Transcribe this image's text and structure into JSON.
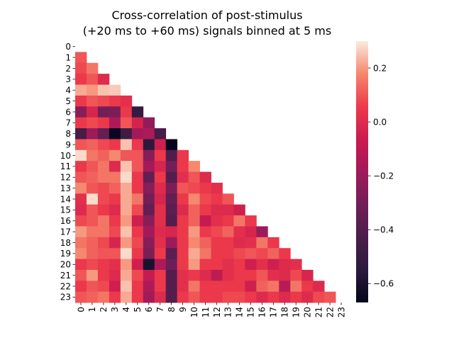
{
  "chart_data": {
    "type": "heatmap",
    "title_lines": [
      "Cross-correlation of post-stimulus",
      "(+20 ms to +60 ms) signals binned at 5 ms"
    ],
    "xlabel": "",
    "ylabel": "",
    "x_tick_labels": [
      "0",
      "1",
      "2",
      "3",
      "4",
      "5",
      "6",
      "7",
      "8",
      "9",
      "10",
      "11",
      "12",
      "13",
      "14",
      "15",
      "16",
      "17",
      "18",
      "19",
      "20",
      "21",
      "22",
      "23"
    ],
    "y_tick_labels": [
      "0",
      "1",
      "2",
      "3",
      "4",
      "5",
      "6",
      "7",
      "8",
      "9",
      "10",
      "11",
      "12",
      "13",
      "14",
      "15",
      "16",
      "17",
      "18",
      "19",
      "20",
      "21",
      "22",
      "23"
    ],
    "mask": "upper triangle including diagonal (only cells with column < row are shown)",
    "colormap": "rocket",
    "vmin": -0.67,
    "vmax": 0.3,
    "colorbar_ticks": [
      0.2,
      0.0,
      -0.2,
      -0.4,
      -0.6
    ],
    "colorbar_tick_labels": [
      "0.2",
      "0.0",
      "−0.2",
      "−0.4",
      "−0.6"
    ],
    "values": [
      [],
      [
        0.1
      ],
      [
        0.08,
        0.15
      ],
      [
        0.05,
        0.1,
        0.0
      ],
      [
        0.22,
        0.2,
        0.25,
        0.26
      ],
      [
        0.05,
        0.1,
        0.08,
        0.05,
        0.02
      ],
      [
        -0.25,
        -0.02,
        -0.3,
        -0.28,
        0.05,
        -0.52
      ],
      [
        0.05,
        0.08,
        0.05,
        -0.15,
        0.1,
        -0.03,
        -0.22
      ],
      [
        -0.45,
        -0.2,
        -0.35,
        -0.65,
        -0.48,
        -0.18,
        -0.15,
        -0.45
      ],
      [
        0.1,
        0.12,
        0.08,
        0.05,
        0.25,
        0.05,
        -0.55,
        -0.05,
        -0.66
      ],
      [
        0.28,
        0.15,
        0.12,
        0.18,
        0.1,
        0.1,
        -0.25,
        0.05,
        -0.42,
        0.05
      ],
      [
        0.05,
        0.1,
        0.15,
        0.0,
        0.25,
        0.1,
        -0.18,
        -0.02,
        -0.3,
        0.05,
        0.18
      ],
      [
        0.1,
        0.12,
        0.15,
        0.15,
        0.28,
        0.05,
        -0.35,
        0.05,
        -0.4,
        0.02,
        0.1,
        0.0
      ],
      [
        0.18,
        0.1,
        0.08,
        0.12,
        0.22,
        0.05,
        -0.25,
        0.0,
        -0.28,
        0.1,
        0.08,
        0.05,
        0.02
      ],
      [
        0.02,
        0.28,
        0.08,
        0.05,
        0.22,
        0.15,
        -0.3,
        -0.02,
        -0.35,
        0.05,
        0.18,
        0.08,
        0.05,
        0.1
      ],
      [
        0.0,
        0.1,
        0.05,
        0.0,
        0.22,
        0.08,
        -0.35,
        0.02,
        -0.38,
        0.0,
        0.12,
        0.05,
        0.0,
        0.0,
        -0.05
      ],
      [
        0.08,
        0.1,
        0.15,
        0.05,
        0.2,
        -0.05,
        -0.25,
        0.02,
        -0.4,
        0.05,
        0.12,
        -0.08,
        0.02,
        0.05,
        0.15,
        0.05
      ],
      [
        0.2,
        0.15,
        0.15,
        0.08,
        0.25,
        0.05,
        -0.18,
        0.0,
        -0.02,
        0.05,
        0.2,
        0.05,
        0.08,
        0.12,
        0.02,
        -0.02,
        -0.2
      ],
      [
        0.15,
        0.12,
        0.08,
        -0.02,
        0.2,
        0.08,
        -0.25,
        0.02,
        -0.2,
        0.05,
        0.18,
        0.12,
        0.05,
        0.05,
        0.0,
        0.02,
        0.15,
        0.05
      ],
      [
        0.18,
        0.12,
        0.1,
        0.1,
        0.28,
        0.05,
        -0.28,
        0.05,
        -0.38,
        0.05,
        0.22,
        0.15,
        0.05,
        0.05,
        0.08,
        0.1,
        0.08,
        0.12,
        0.05
      ],
      [
        0.05,
        0.08,
        0.05,
        0.02,
        0.2,
        -0.05,
        -0.6,
        -0.15,
        -0.32,
        0.05,
        0.2,
        0.05,
        0.05,
        0.02,
        0.05,
        -0.05,
        0.02,
        -0.05,
        0.0,
        0.02
      ],
      [
        0.1,
        0.2,
        0.05,
        0.0,
        0.22,
        0.08,
        -0.08,
        0.05,
        -0.4,
        0.02,
        0.05,
        0.0,
        -0.1,
        0.02,
        0.05,
        0.05,
        0.1,
        0.02,
        0.0,
        0.08,
        -0.02
      ],
      [
        0.05,
        0.1,
        0.08,
        -0.05,
        0.25,
        0.05,
        -0.15,
        0.05,
        -0.4,
        0.02,
        0.15,
        0.05,
        0.05,
        0.05,
        0.05,
        -0.05,
        0.12,
        0.15,
        -0.12,
        0.15,
        0.05,
        0.0
      ],
      [
        0.1,
        0.12,
        0.15,
        0.05,
        0.22,
        0.05,
        -0.18,
        0.0,
        -0.4,
        0.05,
        0.1,
        0.05,
        0.05,
        0.08,
        0.08,
        0.05,
        0.0,
        0.05,
        0.0,
        0.05,
        0.0,
        0.08,
        0.1
      ]
    ]
  }
}
